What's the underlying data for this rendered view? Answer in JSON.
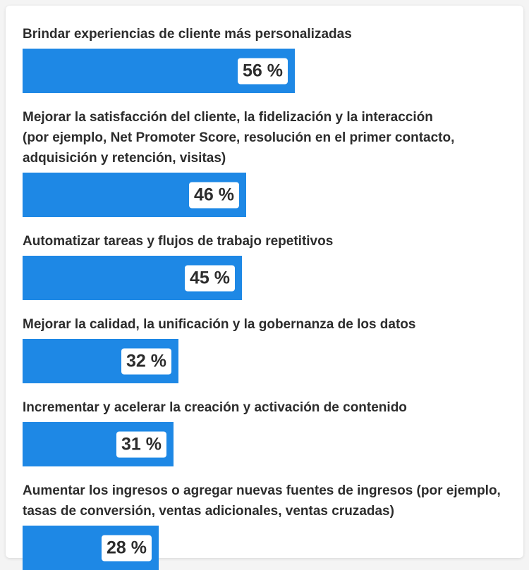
{
  "colors": {
    "accent": "#1e88e5",
    "text": "#2c2c2c",
    "badge_bg": "#ffffff"
  },
  "chart_data": {
    "type": "bar",
    "orientation": "horizontal",
    "categories": [
      "Brindar experiencias de cliente más personalizadas",
      "Mejorar la satisfacción del cliente, la fidelización y la interacción\n(por ejemplo, Net Promoter Score, resolución en el primer contacto,\nadquisición y retención, visitas)",
      "Automatizar tareas y flujos de trabajo repetitivos",
      "Mejorar la calidad, la unificación y la gobernanza de los datos",
      "Incrementar y acelerar la creación y activación de contenido",
      "Aumentar los ingresos o agregar nuevas fuentes de ingresos (por ejemplo,\ntasas de conversión, ventas adicionales, ventas cruzadas)"
    ],
    "values": [
      56,
      46,
      45,
      32,
      31,
      28
    ],
    "value_labels": [
      "56 %",
      "46 %",
      "45 %",
      "32 %",
      "31 %",
      "28 %"
    ],
    "unit": "%",
    "xlim": [
      0,
      100
    ],
    "grid": false,
    "legend": "none"
  }
}
